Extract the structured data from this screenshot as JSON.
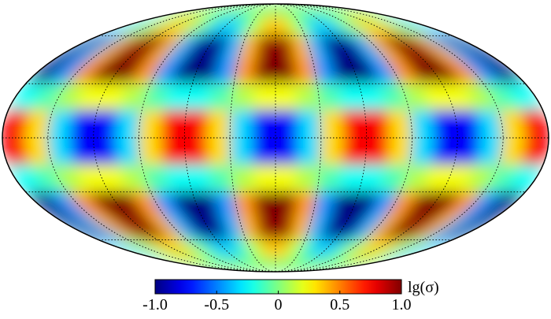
{
  "chart_data": {
    "type": "mollweide",
    "colormap": "jet",
    "grid": true,
    "lon": [
      -172.5,
      -157.5,
      -142.5,
      -127.5,
      -112.5,
      -97.5,
      -82.5,
      -67.5,
      -52.5,
      -37.5,
      -22.5,
      -7.5,
      7.5,
      22.5,
      37.5,
      52.5,
      67.5,
      82.5,
      97.5,
      112.5,
      127.5,
      142.5,
      157.5,
      172.5
    ],
    "lat": [
      82.5,
      67.5,
      52.5,
      37.5,
      22.5,
      7.5,
      -7.5,
      -22.5,
      -37.5,
      -52.5,
      -67.5,
      -82.5
    ],
    "values": [
      [
        -0.02,
        -0.01,
        0.01,
        0.02,
        0.02,
        0.01,
        -0.01,
        -0.02,
        -0.02,
        -0.01,
        0.01,
        0.02,
        0.02,
        0.01,
        -0.01,
        -0.02,
        -0.02,
        -0.01,
        0.01,
        0.02,
        0.02,
        0.01,
        -0.01,
        -0.02
      ],
      [
        -0.35,
        -0.14,
        0.14,
        0.35,
        0.35,
        0.14,
        -0.14,
        -0.35,
        -0.35,
        -0.14,
        0.14,
        0.35,
        0.35,
        0.14,
        -0.14,
        -0.35,
        -0.35,
        -0.14,
        0.14,
        0.35,
        0.35,
        0.14,
        -0.14,
        -0.35
      ],
      [
        -0.97,
        -0.4,
        0.4,
        0.97,
        0.97,
        0.4,
        -0.4,
        -0.97,
        -0.97,
        -0.4,
        0.4,
        0.97,
        0.97,
        0.4,
        -0.4,
        -0.97,
        -0.97,
        -0.4,
        0.4,
        0.97,
        0.97,
        0.4,
        -0.4,
        -0.97
      ],
      [
        -1.08,
        -0.45,
        0.45,
        1.08,
        1.08,
        0.45,
        -0.45,
        -1.08,
        -1.08,
        -0.45,
        0.45,
        1.08,
        1.08,
        0.45,
        -0.45,
        -1.08,
        -1.08,
        -0.45,
        0.45,
        1.08,
        1.08,
        0.45,
        -0.45,
        -1.08
      ],
      [
        -0.23,
        -0.1,
        0.1,
        0.23,
        0.23,
        0.1,
        -0.1,
        -0.23,
        -0.23,
        -0.1,
        0.1,
        0.23,
        0.23,
        0.1,
        -0.1,
        -0.23,
        -0.23,
        -0.1,
        0.1,
        0.23,
        0.23,
        0.1,
        -0.1,
        -0.23
      ],
      [
        0.76,
        0.32,
        -0.32,
        -0.76,
        -0.76,
        -0.32,
        0.32,
        0.76,
        0.76,
        0.32,
        -0.32,
        -0.76,
        -0.76,
        -0.32,
        0.32,
        0.76,
        0.76,
        0.32,
        -0.32,
        -0.76,
        -0.76,
        -0.32,
        0.32,
        0.76
      ],
      [
        0.76,
        0.32,
        -0.32,
        -0.76,
        -0.76,
        -0.32,
        0.32,
        0.76,
        0.76,
        0.32,
        -0.32,
        -0.76,
        -0.76,
        -0.32,
        0.32,
        0.76,
        0.76,
        0.32,
        -0.32,
        -0.76,
        -0.76,
        -0.32,
        0.32,
        0.76
      ],
      [
        -0.23,
        -0.1,
        0.1,
        0.23,
        0.23,
        0.1,
        -0.1,
        -0.23,
        -0.23,
        -0.1,
        0.1,
        0.23,
        0.23,
        0.1,
        -0.1,
        -0.23,
        -0.23,
        -0.1,
        0.1,
        0.23,
        0.23,
        0.1,
        -0.1,
        -0.23
      ],
      [
        -1.08,
        -0.45,
        0.45,
        1.08,
        1.08,
        0.45,
        -0.45,
        -1.08,
        -1.08,
        -0.45,
        0.45,
        1.08,
        1.08,
        0.45,
        -0.45,
        -1.08,
        -1.08,
        -0.45,
        0.45,
        1.08,
        1.08,
        0.45,
        -0.45,
        -1.08
      ],
      [
        -0.97,
        -0.4,
        0.4,
        0.97,
        0.97,
        0.4,
        -0.4,
        -0.97,
        -0.97,
        -0.4,
        0.4,
        0.97,
        0.97,
        0.4,
        -0.4,
        -0.97,
        -0.97,
        -0.4,
        0.4,
        0.97,
        0.97,
        0.4,
        -0.4,
        -0.97
      ],
      [
        -0.35,
        -0.14,
        0.14,
        0.35,
        0.35,
        0.14,
        -0.14,
        -0.35,
        -0.35,
        -0.14,
        0.14,
        0.35,
        0.35,
        0.14,
        -0.14,
        -0.35,
        -0.35,
        -0.14,
        0.14,
        0.35,
        0.35,
        0.14,
        -0.14,
        -0.35
      ],
      [
        -0.02,
        -0.01,
        0.01,
        0.02,
        0.02,
        0.01,
        -0.01,
        -0.02,
        -0.02,
        -0.01,
        0.01,
        0.02,
        0.02,
        0.01,
        -0.01,
        -0.02,
        -0.02,
        -0.01,
        0.01,
        0.02,
        0.02,
        0.01,
        -0.01,
        -0.02
      ]
    ],
    "colorbar": {
      "label": "lg(σ)",
      "lim": [
        -1,
        1
      ],
      "ticks": [
        {
          "value": -1,
          "label": "-1.0"
        },
        -0.5,
        0,
        0.5,
        {
          "value": 1,
          "label": "1.0"
        }
      ]
    }
  }
}
